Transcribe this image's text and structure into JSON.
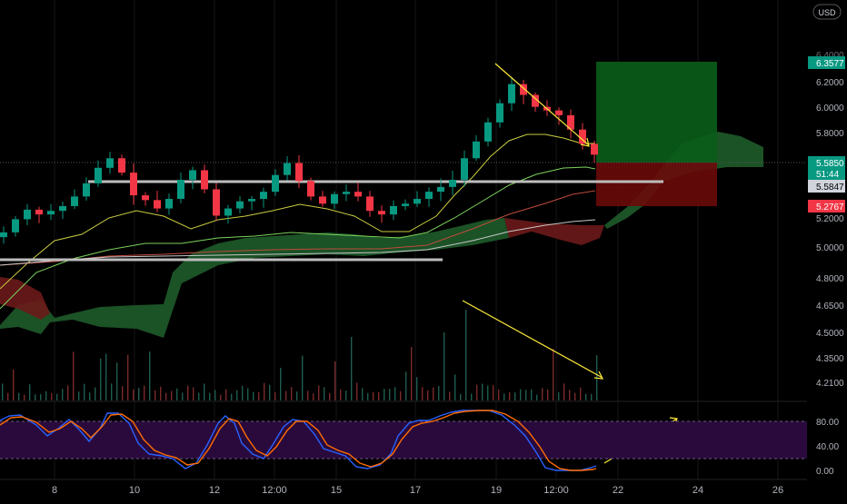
{
  "currency_button": "USD",
  "price_axis": {
    "labels": [
      "6.2000",
      "6.0000",
      "5.8000",
      "5.2000",
      "5.0000",
      "4.8000",
      "4.6500",
      "4.5000",
      "4.3500",
      "4.2100"
    ],
    "partial_label": "6.4000"
  },
  "badges": {
    "target": "6.3577",
    "current": "5.5850",
    "countdown": "51:44",
    "entry": "5.5847",
    "stop": "5.2767"
  },
  "colors": {
    "up": "#089981",
    "down": "#f23645",
    "stoch_k": "#2962ff",
    "stoch_d": "#ff6d00",
    "annotation": "#ffeb3b",
    "cloud_bull": "#1e5b2a",
    "cloud_bear": "#6b1a1a",
    "target_zone": "#0a5d1a",
    "stop_zone": "#6a0a0a",
    "stoch_band": "#2a0a3d"
  },
  "stochastic": {
    "levels": [
      "80.00",
      "40.00",
      "0.00"
    ]
  },
  "time_axis": {
    "labels": [
      "8",
      "10",
      "12",
      "12:00",
      "15",
      "17",
      "19",
      "12:00",
      "22",
      "24",
      "26"
    ]
  },
  "chart_data": {
    "type": "candlestick",
    "y_range": [
      4.2,
      6.4
    ],
    "sampled_close": [
      4.94,
      5.05,
      5.13,
      5.09,
      5.12,
      5.16,
      5.24,
      5.35,
      5.48,
      5.56,
      5.44,
      5.25,
      5.21,
      5.14,
      5.22,
      5.38,
      5.46,
      5.3,
      5.08,
      5.14,
      5.2,
      5.22,
      5.28,
      5.42,
      5.52,
      5.37,
      5.24,
      5.18,
      5.26,
      5.28,
      5.24,
      5.12,
      5.09,
      5.16,
      5.18,
      5.22,
      5.28,
      5.32,
      5.38,
      5.56,
      5.7,
      5.86,
      6.02,
      6.18,
      6.09,
      5.99,
      5.96,
      5.92,
      5.8,
      5.68,
      5.59
    ],
    "reference_levels": {
      "resistance": 5.585,
      "support": 4.93,
      "target": 6.3577,
      "current": 5.585,
      "entry": 5.5847,
      "stop": 5.2767
    }
  }
}
